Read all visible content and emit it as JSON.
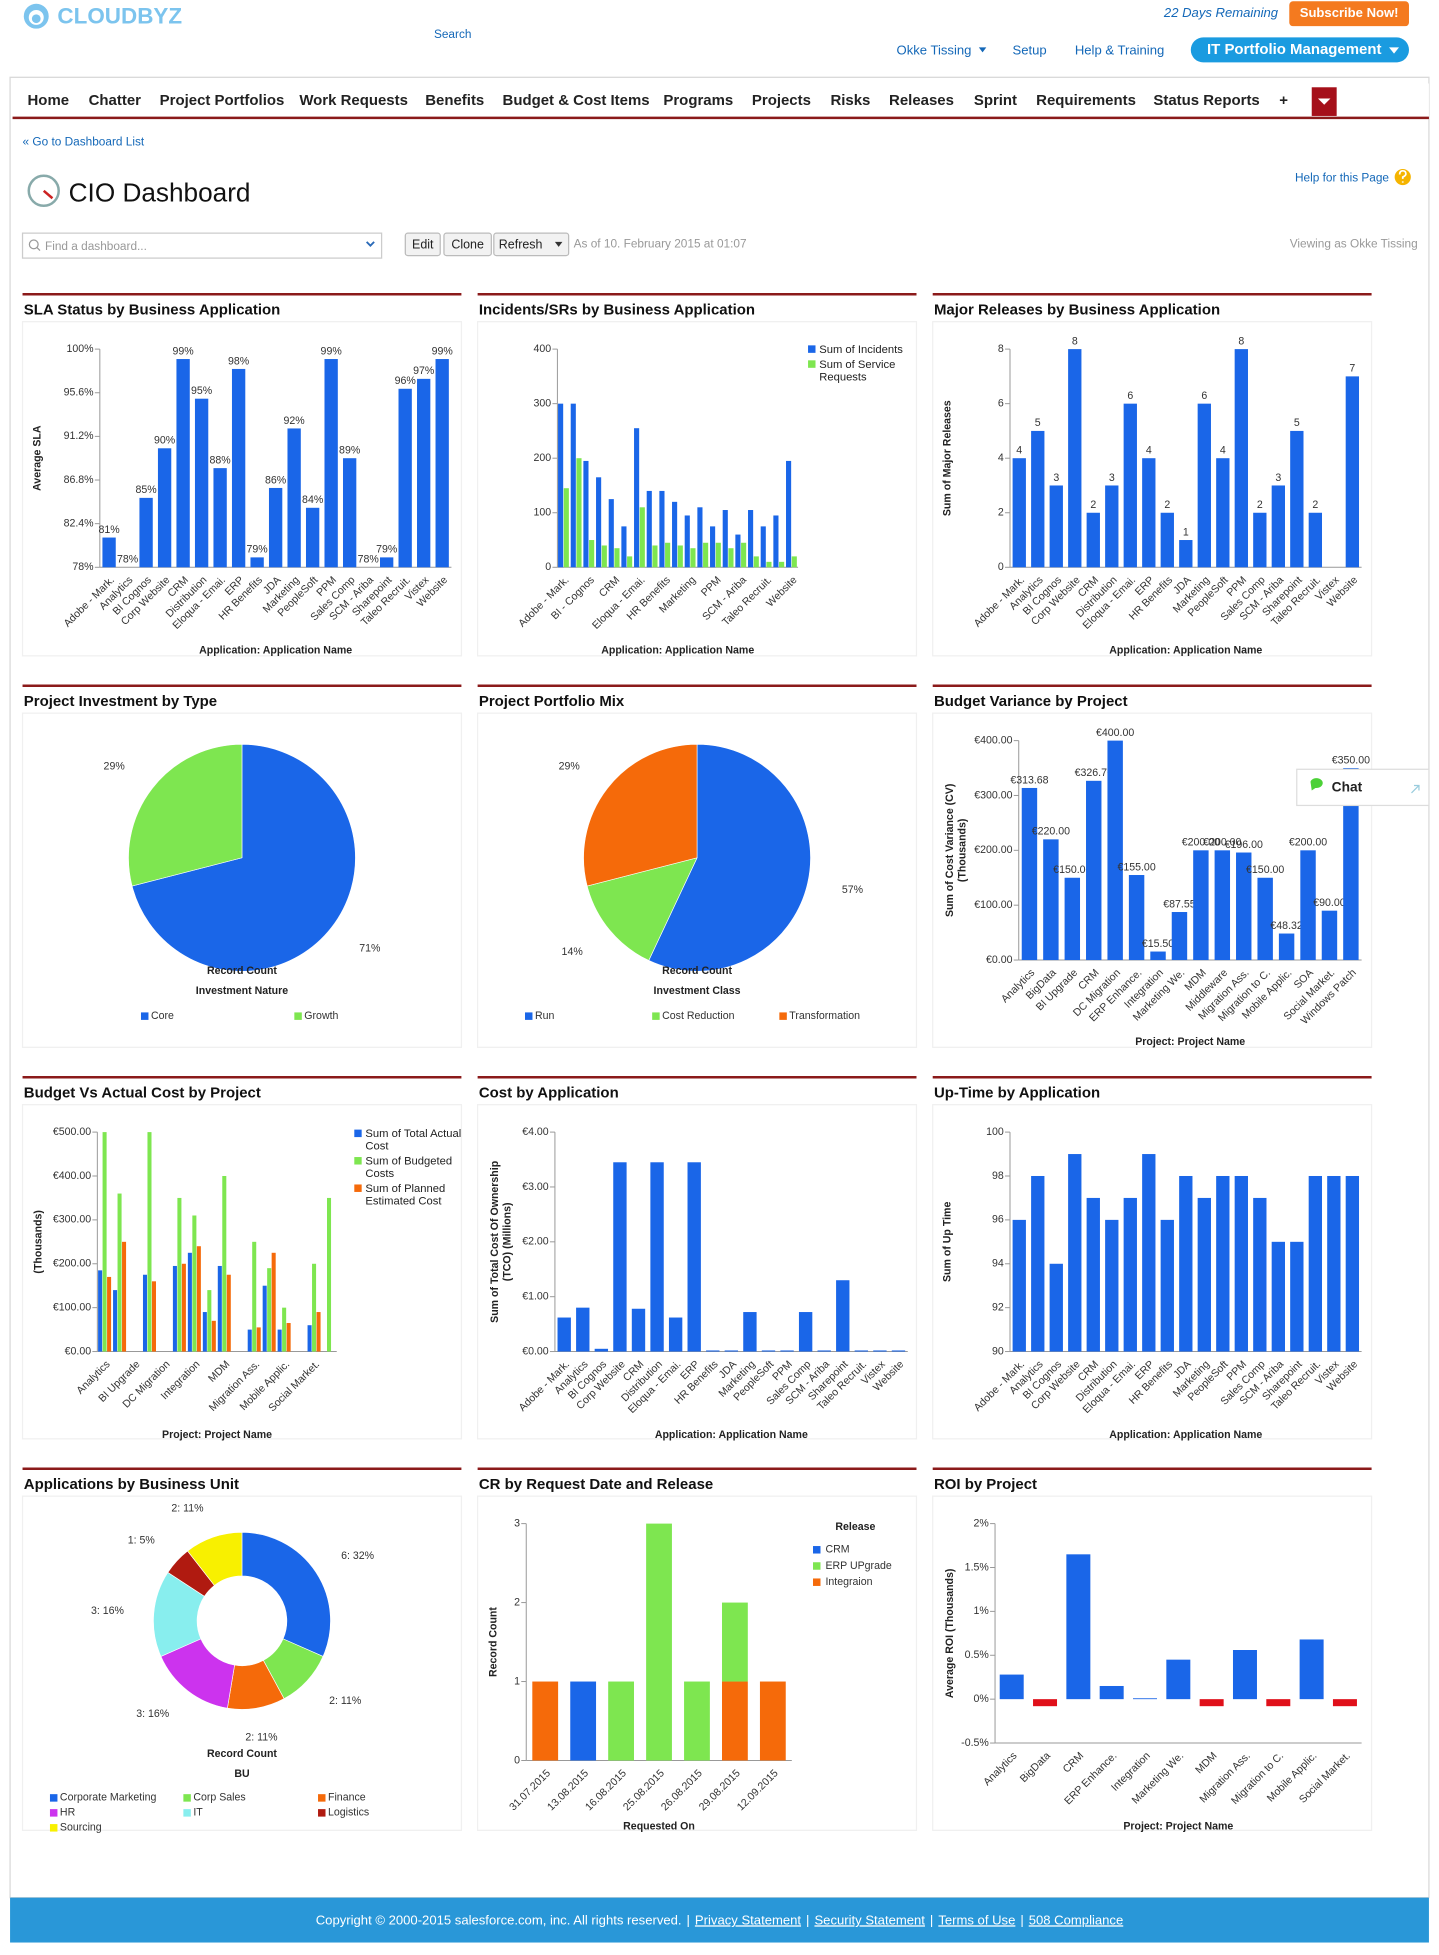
{
  "header": {
    "logo": "CLOUDBYZ",
    "search": "Search",
    "trial": "22 Days Remaining",
    "subscribe": "Subscribe Now!",
    "user": "Okke Tissing",
    "setup": "Setup",
    "help": "Help & Training",
    "app": "IT Portfolio Management"
  },
  "nav": [
    "Home",
    "Chatter",
    "Project Portfolios",
    "Work Requests",
    "Benefits",
    "Budget & Cost Items",
    "Programs",
    "Projects",
    "Risks",
    "Releases",
    "Sprint",
    "Requirements",
    "Status Reports",
    "+"
  ],
  "dashboard": {
    "back": "« Go to Dashboard List",
    "title": "CIO Dashboard",
    "help": "Help for this Page",
    "find": "Find a dashboard...",
    "buttons": [
      "Edit",
      "Clone",
      "Refresh"
    ],
    "as_of": "As of 10. February 2015 at 01:07",
    "viewing": "Viewing as Okke Tissing"
  },
  "chat": "Chat",
  "footer": {
    "copyright": "Copyright © 2000-2015 salesforce.com, inc. All rights reserved.",
    "separator": "|",
    "links": [
      "Privacy Statement",
      "Security Statement",
      "Terms of Use",
      "508 Compliance"
    ]
  },
  "chart_data": [
    {
      "type": "bar",
      "title": "SLA Status by Business Application",
      "ylabel": "Average SLA",
      "xlabel": "Application: Application Name",
      "categories": [
        "Adobe - Mark.",
        "Analytics",
        "BI Cognos",
        "Corp Website",
        "CRM",
        "Distribution",
        "Eloqua - Emai.",
        "ERP",
        "HR Benefits",
        "JDA",
        "Marketing",
        "PeopleSoft",
        "PPM",
        "Sales Comp",
        "SCM - Ariba",
        "Sharepoint",
        "Taleo Recruit.",
        "Vistex",
        "Website"
      ],
      "values": [
        81,
        78,
        85,
        90,
        99,
        95,
        88,
        98,
        79,
        86,
        92,
        84,
        99,
        89,
        78,
        79,
        96,
        97,
        99
      ],
      "value_labels": [
        "81%",
        "78%",
        "85%",
        "90%",
        "99%",
        "95%",
        "88%",
        "98%",
        "79%",
        "86%",
        "92%",
        "84%",
        "99%",
        "89%",
        "78%",
        "79%",
        "96%",
        "97%",
        "99%"
      ],
      "color": "#1a66e8",
      "ylim": [
        78,
        100
      ],
      "yticks": [
        {
          "value": 78,
          "label": "78%"
        },
        {
          "value": 82.4,
          "label": "82.4%"
        },
        {
          "value": 86.8,
          "label": "86.8%"
        },
        {
          "value": 91.2,
          "label": "91.2%"
        },
        {
          "value": 95.6,
          "label": "95.6%"
        },
        {
          "value": 100,
          "label": "100%"
        }
      ]
    },
    {
      "type": "bar",
      "title": "Incidents/SRs by Business Application",
      "xlabel": "Application: Application Name",
      "categories": [
        "Adobe - Mark.",
        null,
        "BI - Cognos",
        null,
        "CRM",
        null,
        "Eloqua - Emai.",
        null,
        "HR Benefits",
        null,
        "Marketing",
        null,
        "PPM",
        null,
        "SCM - Ariba",
        null,
        "Taleo Recruit.",
        null,
        "Website"
      ],
      "series": [
        {
          "name": "Sum of Incidents",
          "color": "#1a66e8",
          "values": [
            300,
            300,
            195,
            165,
            125,
            75,
            255,
            140,
            140,
            120,
            95,
            110,
            75,
            105,
            60,
            105,
            75,
            95,
            195
          ]
        },
        {
          "name": "Sum of Service Requests",
          "color": "#7ee650",
          "values": [
            145,
            200,
            50,
            40,
            35,
            20,
            110,
            40,
            45,
            40,
            35,
            45,
            45,
            35,
            45,
            20,
            10,
            10,
            20
          ]
        }
      ],
      "ylim": [
        0,
        400
      ],
      "yticks": [
        0,
        100,
        200,
        300,
        400
      ]
    },
    {
      "type": "bar",
      "title": "Major Releases by Business Application",
      "ylabel": "Sum of Major Releases",
      "xlabel": "Application: Application Name",
      "categories": [
        "Adobe - Mark.",
        "Analytics",
        "BI Cognos",
        "Corp Website",
        "CRM",
        "Distribution",
        "Eloqua - Emai.",
        "ERP",
        "HR Benefits",
        "JDA",
        "Marketing",
        "PeopleSoft",
        "PPM",
        "Sales Comp",
        "SCM - Ariba",
        "Sharepoint",
        "Taleo Recruit.",
        "Vistex",
        "Website"
      ],
      "values": [
        4,
        5,
        3,
        8,
        2,
        3,
        6,
        4,
        2,
        1,
        6,
        4,
        8,
        2,
        3,
        5,
        2,
        0,
        7
      ],
      "value_labels": [
        "4",
        "5",
        "3",
        "8",
        "2",
        "3",
        "6",
        "4",
        "2",
        "1",
        "6",
        "4",
        "8",
        "2",
        "3",
        "5",
        "2",
        null,
        "7"
      ],
      "color": "#1a66e8",
      "ylim": [
        0,
        8
      ],
      "yticks": [
        0,
        2,
        4,
        6,
        8
      ]
    },
    {
      "type": "pie",
      "title": "Project Investment by Type",
      "caption": "Record Count",
      "legend_title": "Investment Nature",
      "categories": [
        "Core",
        "Growth"
      ],
      "values": [
        71,
        29
      ],
      "value_labels": [
        "71%",
        "29%"
      ],
      "colors": [
        "#1a66e8",
        "#7ee650"
      ]
    },
    {
      "type": "pie",
      "title": "Project Portfolio Mix",
      "caption": "Record Count",
      "legend_title": "Investment Class",
      "categories": [
        "Run",
        "Cost Reduction",
        "Transformation"
      ],
      "values": [
        57,
        14,
        29
      ],
      "value_labels": [
        "57%",
        "14%",
        "29%"
      ],
      "colors": [
        "#1a66e8",
        "#7ee650",
        "#f56a0a"
      ]
    },
    {
      "type": "bar",
      "title": "Budget Variance by Project",
      "ylabel": [
        "Sum of Cost Variance (CV)",
        "(Thousands)"
      ],
      "xlabel": "Project: Project Name",
      "categories": [
        "Analytics",
        "BigData",
        "BI Upgrade",
        "CRM",
        "DC Migration",
        "ERP Enhance.",
        "Integration",
        "Marketing We.",
        "MDM",
        "Middleware",
        "Migration Ass.",
        "Migration to C.",
        "Mobile Applic.",
        "SOA",
        "Social Market.",
        "Windows Patch"
      ],
      "values": [
        313.68,
        220,
        150,
        326.7,
        400,
        155,
        15.5,
        87.55,
        200,
        200,
        196,
        150,
        48.32,
        200,
        90,
        350
      ],
      "value_labels": [
        "€313.68",
        "€220.00",
        "€150.00",
        "€326.70",
        "€400.00",
        "€155.00",
        "€15.50",
        "€87.55",
        "€200.00",
        "€200.00",
        "€196.00",
        "€150.00",
        "€48.32",
        "€200.00",
        "€90.00",
        "€350.00"
      ],
      "color": "#1a66e8",
      "ylim": [
        0,
        400
      ],
      "yticks": [
        {
          "value": 0,
          "label": "€0.00"
        },
        {
          "value": 100,
          "label": "€100.00"
        },
        {
          "value": 200,
          "label": "€200.00"
        },
        {
          "value": 300,
          "label": "€300.00"
        },
        {
          "value": 400,
          "label": "€400.00"
        }
      ]
    },
    {
      "type": "bar",
      "title": "Budget Vs Actual Cost by Project",
      "ylabel": "(Thousands)",
      "xlabel": "Project: Project Name",
      "categories": [
        "Analytics",
        null,
        "BI Upgrade",
        null,
        "DC Migration",
        null,
        "Integration",
        null,
        "MDM",
        null,
        "Migration Ass.",
        null,
        "Mobile Applic.",
        null,
        "Social Market.",
        null
      ],
      "series": [
        {
          "name": "Sum of Total Actual Cost",
          "color": "#1a66e8",
          "values": [
            185,
            140,
            0,
            175,
            0,
            195,
            225,
            90,
            195,
            0,
            50,
            150,
            50,
            0,
            60,
            0
          ]
        },
        {
          "name": "Sum of Budgeted Costs",
          "color": "#7ee650",
          "values": [
            500,
            360,
            0,
            500,
            0,
            350,
            310,
            140,
            400,
            0,
            250,
            190,
            100,
            0,
            200,
            350
          ]
        },
        {
          "name": "Sum of Planned Estimated Cost",
          "color": "#f56a0a",
          "values": [
            170,
            250,
            0,
            160,
            0,
            200,
            240,
            70,
            175,
            0,
            55,
            225,
            65,
            0,
            90,
            0
          ]
        }
      ],
      "ylim": [
        0,
        500
      ],
      "yticks": [
        {
          "value": 0,
          "label": "€0.00"
        },
        {
          "value": 100,
          "label": "€100.00"
        },
        {
          "value": 200,
          "label": "€200.00"
        },
        {
          "value": 300,
          "label": "€300.00"
        },
        {
          "value": 400,
          "label": "€400.00"
        },
        {
          "value": 500,
          "label": "€500.00"
        }
      ]
    },
    {
      "type": "bar",
      "title": "Cost by Application",
      "ylabel": [
        "Sum of Total Cost Of Ownership",
        "(TCO) (Millions)"
      ],
      "xlabel": "Application: Application Name",
      "categories": [
        "Adobe - Mark.",
        "Analytics",
        "BI Cognos",
        "Corp Website",
        "CRM",
        "Distribution",
        "Eloqua - Emai.",
        "ERP",
        "HR Benefits",
        "JDA",
        "Marketing",
        "PeopleSoft",
        "PPM",
        "Sales Comp",
        "SCM - Ariba",
        "Sharepoint",
        "Taleo Recruit.",
        "Vistex",
        "Website"
      ],
      "values": [
        0.62,
        0.8,
        0.05,
        3.45,
        0.78,
        3.45,
        0.62,
        3.45,
        0.02,
        0.02,
        0.72,
        0.02,
        0.02,
        0.72,
        0.02,
        1.3,
        0.02,
        0.02,
        0.02
      ],
      "color": "#1a66e8",
      "ylim": [
        0,
        4
      ],
      "yticks": [
        {
          "value": 0,
          "label": "€0.00"
        },
        {
          "value": 1,
          "label": "€1.00"
        },
        {
          "value": 2,
          "label": "€2.00"
        },
        {
          "value": 3,
          "label": "€3.00"
        },
        {
          "value": 4,
          "label": "€4.00"
        }
      ]
    },
    {
      "type": "bar",
      "title": "Up-Time by Application",
      "ylabel": "Sum of Up Time",
      "xlabel": "Application: Application Name",
      "categories": [
        "Adobe - Mark.",
        "Analytics",
        "BI Cognos",
        "Corp Website",
        "CRM",
        "Distribution",
        "Eloqua - Emai.",
        "ERP",
        "HR Benefits",
        "JDA",
        "Marketing",
        "PeopleSoft",
        "PPM",
        "Sales Comp",
        "SCM - Ariba",
        "Sharepoint",
        "Taleo Recruit.",
        "Vistex",
        "Website"
      ],
      "values": [
        96,
        98,
        94,
        99,
        97,
        96,
        97,
        99,
        96,
        98,
        97,
        98,
        98,
        97,
        95,
        95,
        98,
        98,
        98
      ],
      "color": "#1a66e8",
      "ylim": [
        90,
        100
      ],
      "yticks": [
        90,
        92,
        94,
        96,
        98,
        100
      ]
    },
    {
      "type": "donut",
      "title": "Applications by Business Unit",
      "caption": "Record Count",
      "legend_title": "BU",
      "categories": [
        "Corporate Marketing",
        "Corp Sales",
        "Finance",
        "HR",
        "IT",
        "Logistics",
        "Sourcing"
      ],
      "values": [
        6,
        2,
        2,
        3,
        3,
        1,
        2
      ],
      "value_labels": [
        "6: 32%",
        "2: 11%",
        "2: 11%",
        "3: 16%",
        "3: 16%",
        "1: 5%",
        "2: 11%"
      ],
      "colors": [
        "#1a66e8",
        "#7ee650",
        "#f56a0a",
        "#cc33ee",
        "#88eeee",
        "#b01a10",
        "#f8f000"
      ]
    },
    {
      "type": "stacked_bar",
      "title": "CR by Request Date and Release",
      "ylabel": "Record Count",
      "xlabel": "Requested On",
      "legend_title": "Release",
      "categories": [
        "31.07.2015",
        "13.08.2015",
        "16.08.2015",
        "25.08.2015",
        "26.08.2015",
        "29.08.2015",
        "12.09.2015"
      ],
      "series": [
        {
          "name": "CRM",
          "color": "#1a66e8",
          "values": [
            0,
            1,
            0,
            0,
            0,
            0,
            0
          ]
        },
        {
          "name": "ERP UPgrade",
          "color": "#7ee650",
          "values": [
            0,
            0,
            1,
            3,
            1,
            1,
            0
          ]
        },
        {
          "name": "Integraion",
          "color": "#f56a0a",
          "values": [
            1,
            0,
            0,
            0,
            0,
            1,
            1
          ]
        }
      ],
      "ylim": [
        0,
        3
      ],
      "yticks": [
        0,
        1,
        2,
        3
      ]
    },
    {
      "type": "bar",
      "title": "ROI by Project",
      "ylabel": "Average ROI (Thousands)",
      "xlabel": "Project: Project Name",
      "categories": [
        "Analytics",
        "BigData",
        "CRM",
        "ERP Enhance.",
        "Integration",
        "Marketing We.",
        "MDM",
        "Migration Ass.",
        "Migration to C.",
        "Mobile Applic.",
        "Social Market."
      ],
      "values": [
        0.28,
        -0.08,
        1.65,
        0.15,
        0.01,
        0.45,
        -0.08,
        0.56,
        -0.08,
        0.68,
        -0.08
      ],
      "color": "#1a66e8",
      "negative_color": "#e0101a",
      "ylim": [
        -0.5,
        2
      ],
      "yticks": [
        {
          "value": -0.5,
          "label": "-0.5%"
        },
        {
          "value": 0,
          "label": "0%"
        },
        {
          "value": 0.5,
          "label": "0.5%"
        },
        {
          "value": 1,
          "label": "1%"
        },
        {
          "value": 1.5,
          "label": "1.5%"
        },
        {
          "value": 2,
          "label": "2%"
        }
      ]
    }
  ]
}
